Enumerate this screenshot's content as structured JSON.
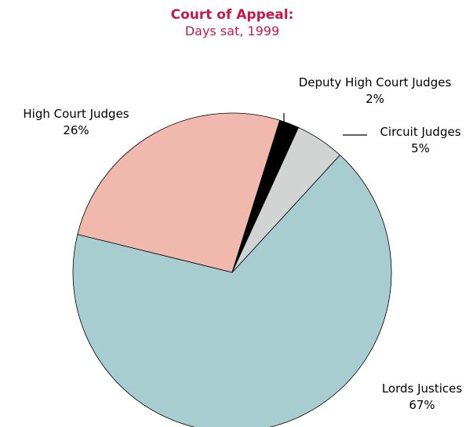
{
  "chart_data": {
    "type": "pie",
    "title": "Court of Appeal:",
    "subtitle": "Days sat, 1999",
    "categories": [
      "Lords Justices",
      "High Court Judges",
      "Deputy High Court Judges",
      "Circuit Judges"
    ],
    "values": [
      67,
      26,
      2,
      5
    ],
    "value_labels": [
      "67%",
      "26%",
      "2%",
      "5%"
    ],
    "colors": [
      "#a8cdd1",
      "#f1b9ae",
      "#000000",
      "#d2d3d3"
    ]
  }
}
